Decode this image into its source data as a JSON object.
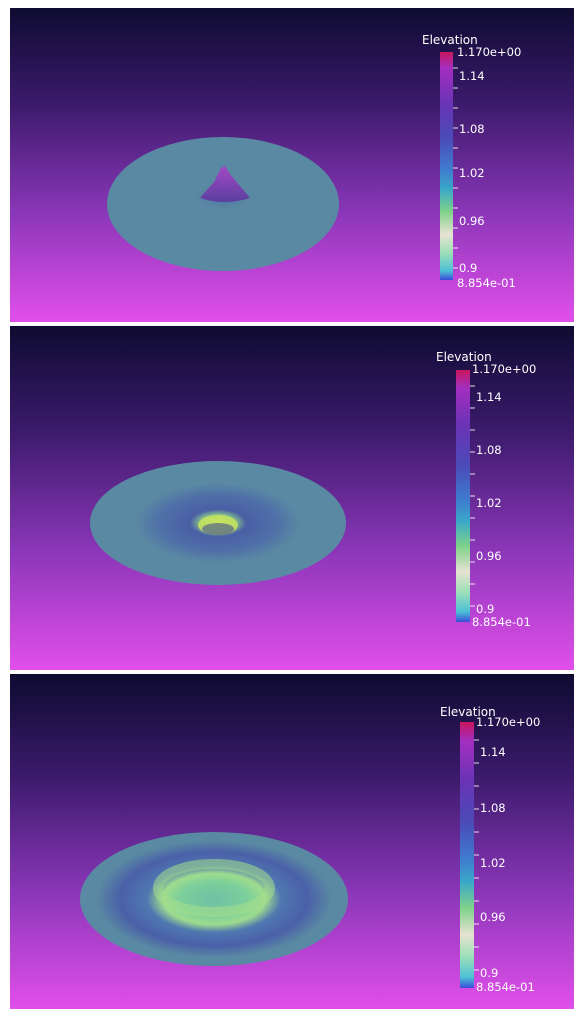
{
  "colors": {
    "background_top": "#0e0b32",
    "background_bottom": "#e14fea",
    "disk_base": "#5a8aa3",
    "ring_blue": "#4a5fa5",
    "ring_green": "#8fd08a",
    "peak_purple": "#8a3fb0"
  },
  "panels": [
    {
      "scalar_bar": {
        "title": "Elevation",
        "max_label": "1.170e+00",
        "min_label": "8.854e-01",
        "ticks": [
          "1.14",
          "1.08",
          "1.02",
          "0.96",
          "0.9"
        ]
      }
    },
    {
      "scalar_bar": {
        "title": "Elevation",
        "max_label": "1.170e+00",
        "min_label": "8.854e-01",
        "ticks": [
          "1.14",
          "1.08",
          "1.02",
          "0.96",
          "0.9"
        ]
      }
    },
    {
      "scalar_bar": {
        "title": "Elevation",
        "max_label": "1.170e+00",
        "min_label": "8.854e-01",
        "ticks": [
          "1.14",
          "1.08",
          "1.02",
          "0.96",
          "0.9"
        ]
      }
    }
  ]
}
